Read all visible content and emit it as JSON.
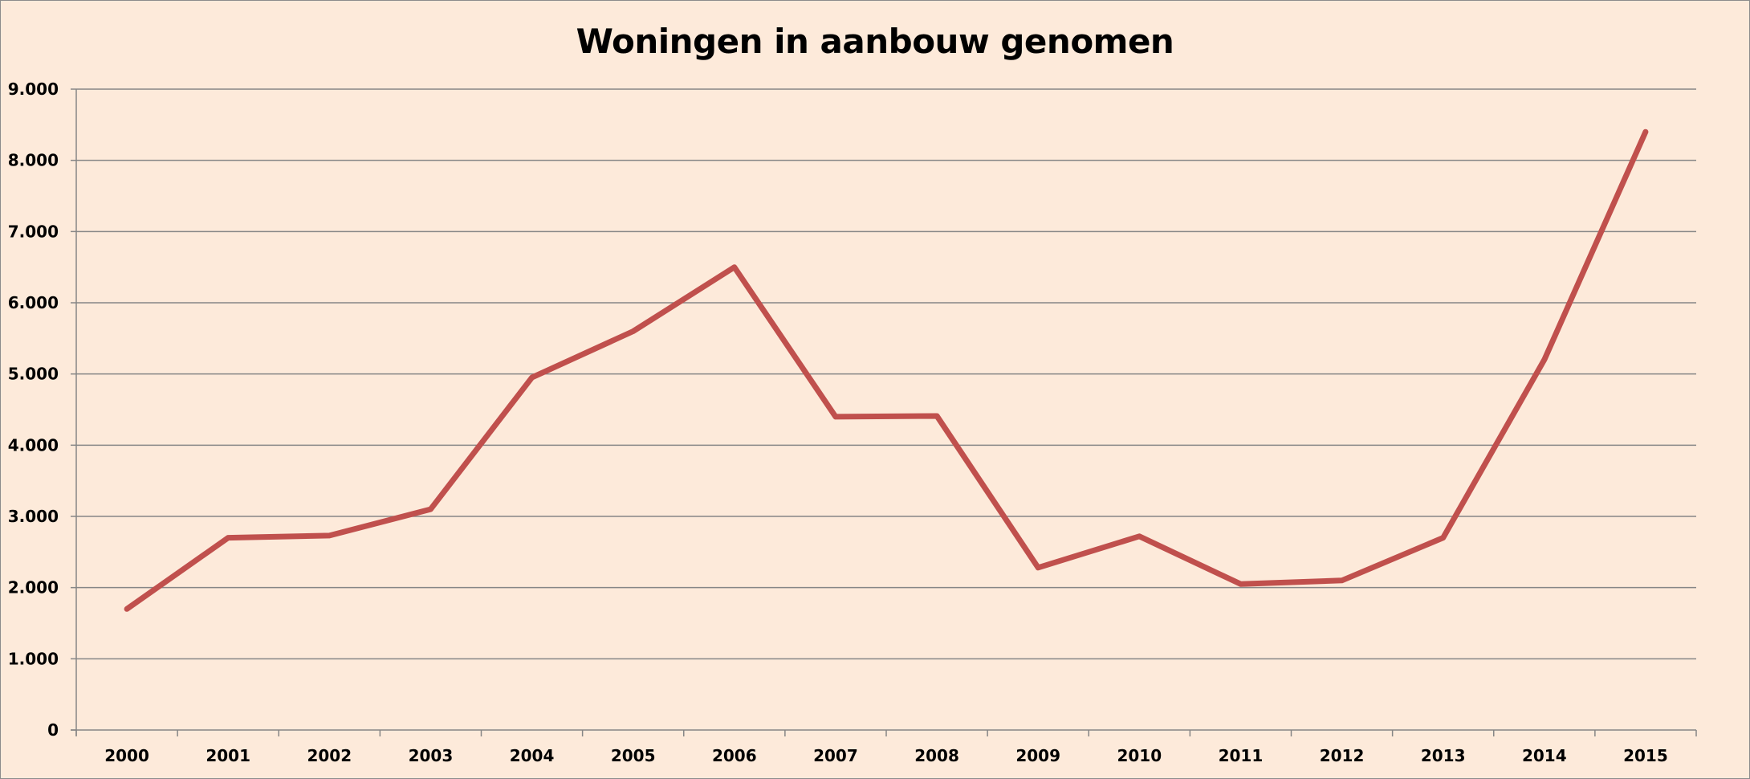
{
  "chart_data": {
    "type": "line",
    "title": "Woningen in aanbouw genomen",
    "xlabel": "",
    "ylabel": "",
    "categories": [
      "2000",
      "2001",
      "2002",
      "2003",
      "2004",
      "2005",
      "2006",
      "2007",
      "2008",
      "2009",
      "2010",
      "2011",
      "2012",
      "2013",
      "2014",
      "2015"
    ],
    "series": [
      {
        "values": [
          1700,
          2700,
          2730,
          3100,
          4950,
          5600,
          6500,
          4400,
          4410,
          2280,
          2720,
          2050,
          2100,
          2700,
          5200,
          8400
        ],
        "color": "#c0504d"
      }
    ],
    "ylim": [
      0,
      9000
    ],
    "yticks": [
      {
        "value": 0,
        "label": "0"
      },
      {
        "value": 1000,
        "label": "1.000"
      },
      {
        "value": 2000,
        "label": "2.000"
      },
      {
        "value": 3000,
        "label": "3.000"
      },
      {
        "value": 4000,
        "label": "4.000"
      },
      {
        "value": 5000,
        "label": "5.000"
      },
      {
        "value": 6000,
        "label": "6.000"
      },
      {
        "value": 7000,
        "label": "7.000"
      },
      {
        "value": 8000,
        "label": "8.000"
      },
      {
        "value": 9000,
        "label": "9.000"
      }
    ],
    "grid": true,
    "gridline_color": "#868686",
    "background_color": "#fdeada",
    "legend": "none"
  }
}
